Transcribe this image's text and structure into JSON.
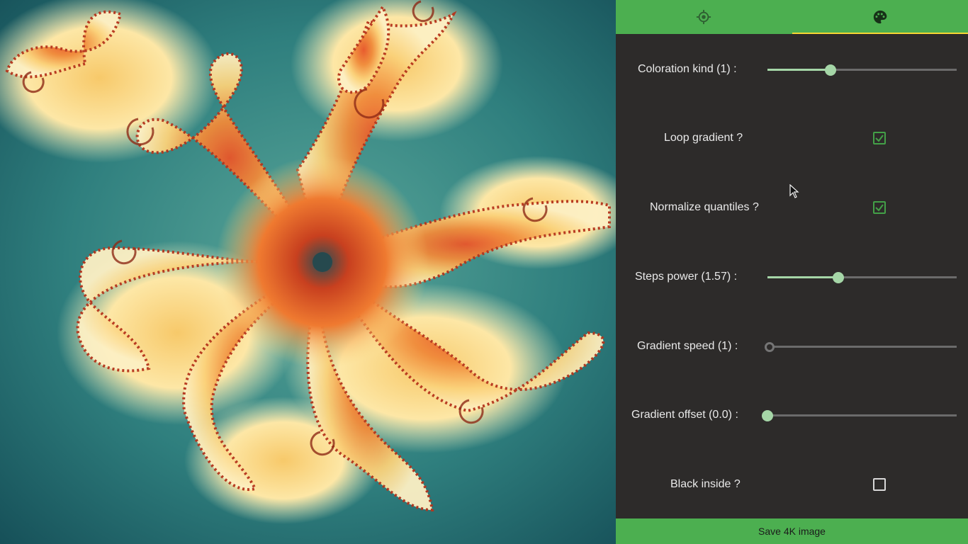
{
  "tabs": [
    {
      "icon": "crosshair-icon",
      "active": false
    },
    {
      "icon": "palette-icon",
      "active": true
    }
  ],
  "colors": {
    "accent": "#4caf50",
    "tab_indicator": "#f7d533",
    "slider_active": "#a5d6a7",
    "panel_bg": "#2d2b2a",
    "checkbox_checked": "#43a047"
  },
  "controls": {
    "coloration_kind": {
      "label": "Coloration kind (1) :",
      "fraction": 0.33
    },
    "loop_gradient": {
      "label": "Loop gradient ?",
      "checked": true
    },
    "normalize_quantiles": {
      "label": "Normalize quantiles ?",
      "checked": true
    },
    "steps_power": {
      "label": "Steps power (1.57) :",
      "fraction": 0.375
    },
    "gradient_speed": {
      "label": "Gradient speed (1) :",
      "fraction": 0.0
    },
    "gradient_offset": {
      "label": "Gradient offset (0.0) :",
      "fraction": 0.0
    },
    "black_inside": {
      "label": "Black inside ?",
      "checked": false
    }
  },
  "save_button": {
    "label": "Save 4K image"
  }
}
